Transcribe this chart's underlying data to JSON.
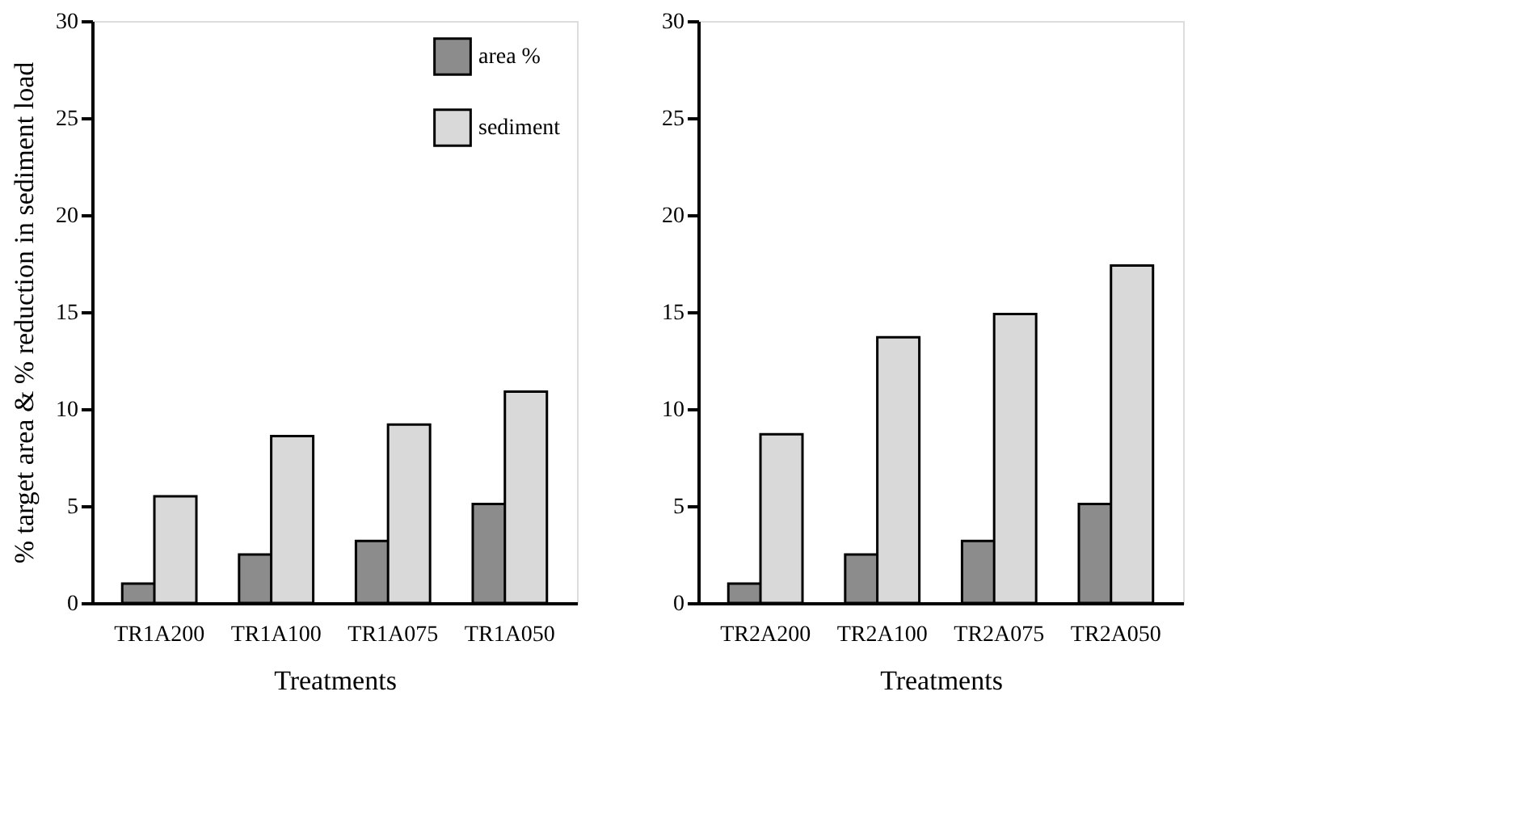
{
  "chart_data": [
    {
      "type": "bar",
      "xlabel": "Treatments",
      "ylabel": "% target area & % reduction in sediment load",
      "categories": [
        "TR1A200",
        "TR1A100",
        "TR1A075",
        "TR1A050"
      ],
      "ylim": [
        0,
        30
      ],
      "yticks": [
        0,
        5,
        10,
        15,
        20,
        25,
        30
      ],
      "grid": false,
      "legend": "top right",
      "series": [
        {
          "name": "area %",
          "color": "#8c8c8c",
          "values": [
            1.0,
            2.5,
            3.2,
            5.1
          ]
        },
        {
          "name": "sediment",
          "color": "#d9d9d9",
          "values": [
            5.5,
            8.6,
            9.2,
            10.9
          ]
        }
      ]
    },
    {
      "type": "bar",
      "xlabel": "Treatments",
      "categories": [
        "TR2A200",
        "TR2A100",
        "TR2A075",
        "TR2A050"
      ],
      "ylim": [
        0,
        30
      ],
      "yticks": [
        0,
        5,
        10,
        15,
        20,
        25,
        30
      ],
      "grid": false,
      "legend": false,
      "series": [
        {
          "color": "#8c8c8c",
          "values": [
            1.0,
            2.5,
            3.2,
            5.1
          ]
        },
        {
          "color": "#d9d9d9",
          "values": [
            8.7,
            13.7,
            14.9,
            17.4
          ]
        }
      ]
    }
  ]
}
